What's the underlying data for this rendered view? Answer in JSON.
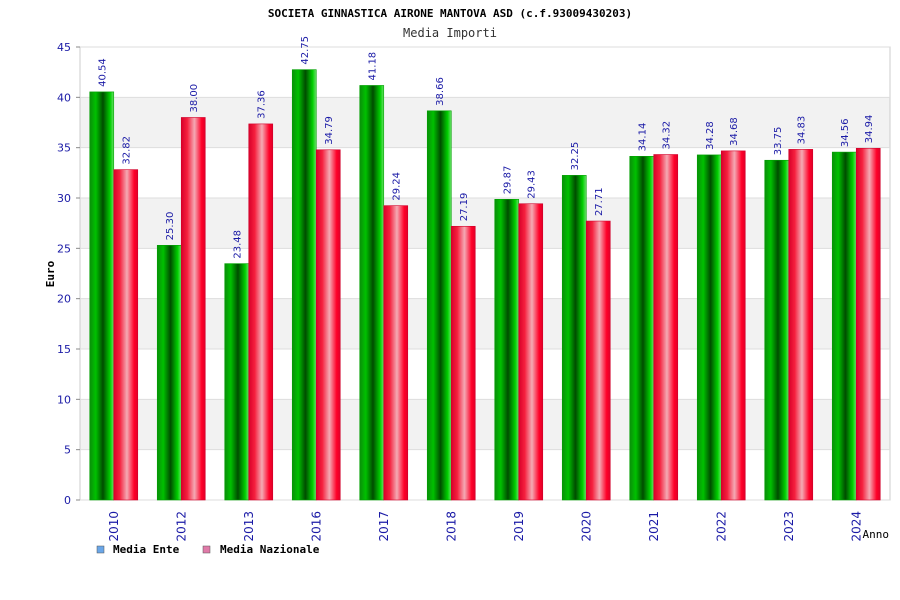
{
  "chart_data": {
    "type": "bar",
    "title": "SOCIETA GINNASTICA AIRONE MANTOVA ASD (c.f.93009430203)",
    "subtitle": "Media Importi",
    "xlabel": "Anno",
    "ylabel": "Euro",
    "ylim": [
      0,
      45
    ],
    "yticks": [
      0,
      5,
      10,
      15,
      20,
      25,
      30,
      35,
      40,
      45
    ],
    "categories": [
      "2010",
      "2012",
      "2013",
      "2016",
      "2017",
      "2018",
      "2019",
      "2020",
      "2021",
      "2022",
      "2023",
      "2024"
    ],
    "series": [
      {
        "name": "Media Ente",
        "color": "#00b000",
        "values": [
          40.54,
          25.3,
          23.48,
          42.75,
          41.18,
          38.66,
          29.87,
          32.25,
          34.14,
          34.28,
          33.75,
          34.56
        ],
        "labels": [
          "40.54",
          "25.30",
          "23.48",
          "42.75",
          "41.18",
          "38.66",
          "29.87",
          "32.25",
          "34.14",
          "34.28",
          "33.75",
          "34.56"
        ]
      },
      {
        "name": "Media Nazionale",
        "color": "#e8002a",
        "values": [
          32.82,
          38.0,
          37.36,
          34.79,
          29.24,
          27.19,
          29.43,
          27.71,
          34.32,
          34.68,
          34.83,
          34.94
        ],
        "labels": [
          "32.82",
          "38.00",
          "37.36",
          "34.79",
          "29.24",
          "27.19",
          "29.43",
          "27.71",
          "34.32",
          "34.68",
          "34.83",
          "34.94"
        ]
      }
    ],
    "legend": {
      "position": "bottom-left",
      "items": [
        {
          "label": "Media Ente",
          "swatch": "#6aa6e8"
        },
        {
          "label": "Media Nazionale",
          "swatch": "#e07aa8"
        }
      ]
    },
    "grid": true
  }
}
